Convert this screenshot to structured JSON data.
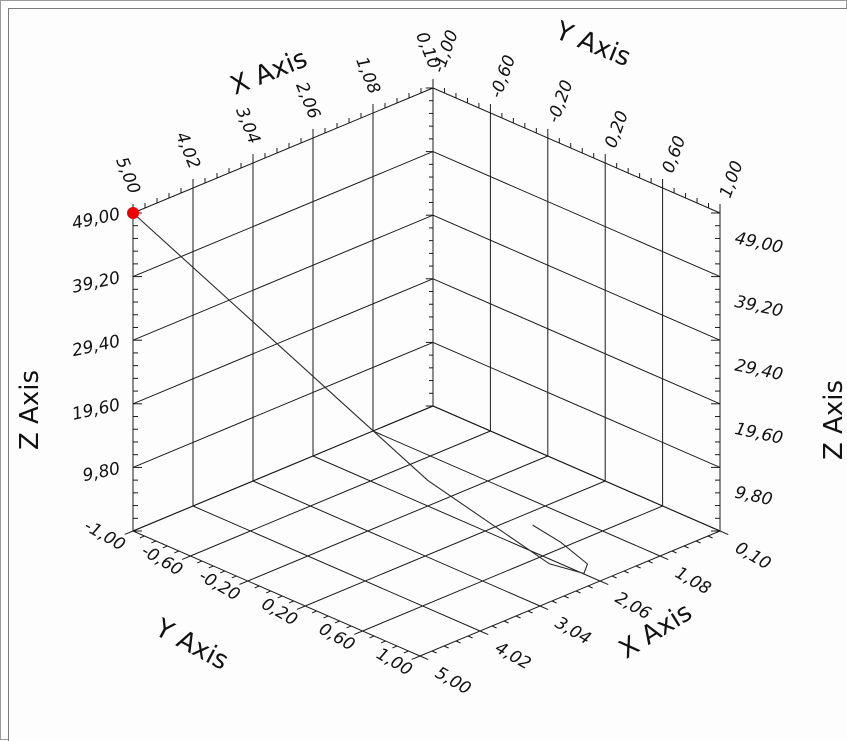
{
  "chart_data": {
    "type": "line3d",
    "axes": {
      "x": {
        "label": "X Axis",
        "range": [
          0.1,
          5.0
        ],
        "ticks": [
          "0,10",
          "1,08",
          "2,06",
          "3,04",
          "4,02",
          "5,00"
        ]
      },
      "y": {
        "label": "Y Axis",
        "range": [
          -1.0,
          1.0
        ],
        "ticks": [
          "-1,00",
          "-0,60",
          "-0,20",
          "0,20",
          "0,60",
          "1,00"
        ]
      },
      "z": {
        "label": "Z Axis",
        "range": [
          0,
          49.0
        ],
        "ticks": [
          "9,80",
          "19,60",
          "29,40",
          "39,20",
          "49,00"
        ]
      }
    },
    "grid": true,
    "series": [
      {
        "style": "line",
        "color": "#2a2a2a",
        "points": [
          {
            "x": 5.0,
            "y": -1.0,
            "z": 49.0
          },
          {
            "x": 4.52,
            "y": -0.52,
            "z": 38.0
          },
          {
            "x": 4.04,
            "y": -0.04,
            "z": 27.0
          },
          {
            "x": 3.56,
            "y": 0.44,
            "z": 16.0
          },
          {
            "x": 2.7,
            "y": 0.92,
            "z": 4.4
          },
          {
            "x": 2.3,
            "y": 0.99,
            "z": 2.0
          },
          {
            "x": 2.1,
            "y": 0.93,
            "z": 2.1
          },
          {
            "x": 1.9,
            "y": 0.66,
            "z": 2.05
          },
          {
            "x": 1.8,
            "y": 0.42,
            "z": 2.0
          }
        ]
      }
    ],
    "marker": {
      "x": 5.0,
      "y": -1.0,
      "z": 49.0,
      "color": "#ee0000"
    }
  }
}
